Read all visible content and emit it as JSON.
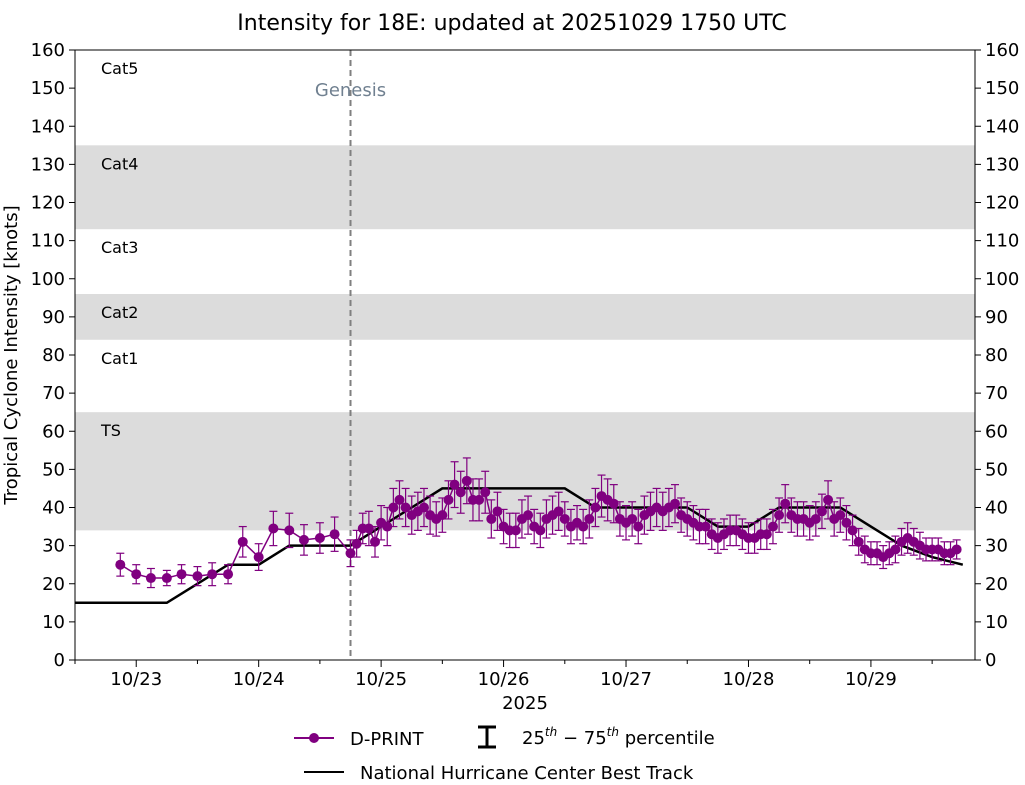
{
  "chart_data": {
    "type": "scatter",
    "title": "Intensity for 18E: updated at 20251029 1750 UTC",
    "ylabel": "Tropical Cyclone Intensity [knots]",
    "xlabel": "2025",
    "ylim": [
      0,
      160
    ],
    "yticks": [
      0,
      10,
      20,
      30,
      40,
      50,
      60,
      70,
      80,
      90,
      100,
      110,
      120,
      130,
      140,
      150,
      160
    ],
    "xlim_days": [
      22.5,
      29.85
    ],
    "xtick_labels": [
      {
        "day": 23,
        "label": "10/23"
      },
      {
        "day": 24,
        "label": "10/24"
      },
      {
        "day": 25,
        "label": "10/25"
      },
      {
        "day": 26,
        "label": "10/26"
      },
      {
        "day": 27,
        "label": "10/27"
      },
      {
        "day": 28,
        "label": "10/28"
      },
      {
        "day": 29,
        "label": "10/29"
      }
    ],
    "category_bands": [
      {
        "label": "TS",
        "ymin": 34,
        "ymax": 65,
        "shaded": true
      },
      {
        "label": "Cat1",
        "ymin": 65,
        "ymax": 84,
        "shaded": false
      },
      {
        "label": "Cat2",
        "ymin": 84,
        "ymax": 96,
        "shaded": true
      },
      {
        "label": "Cat3",
        "ymin": 96,
        "ymax": 113,
        "shaded": false
      },
      {
        "label": "Cat4",
        "ymin": 113,
        "ymax": 135,
        "shaded": true
      },
      {
        "label": "Cat5",
        "ymin": 135,
        "ymax": 160,
        "shaded": false
      }
    ],
    "genesis": {
      "label": "Genesis",
      "day": 24.75
    },
    "legend": {
      "dprint_label": "D-PRINT",
      "percentile_label": "25th - 75th percentile",
      "percentile_base": "25",
      "percentile_sup1": "th",
      "percentile_mid": " − 75",
      "percentile_sup2": "th",
      "percentile_tail": " percentile",
      "best_track_label": "National Hurricane Center Best Track",
      "placement": "bottom-center"
    },
    "colors": {
      "dprint": "#800080",
      "best_track": "#000000",
      "band": "#dcdcdc",
      "genesis": "#708090"
    },
    "best_track": {
      "x": [
        22.5,
        23.25,
        23.5,
        23.75,
        24.0,
        24.25,
        24.5,
        24.75,
        25.0,
        25.25,
        25.5,
        25.75,
        26.0,
        26.25,
        26.5,
        26.75,
        27.0,
        27.25,
        27.5,
        27.75,
        28.0,
        28.25,
        28.5,
        28.75,
        29.0,
        29.25,
        29.5,
        29.75
      ],
      "y": [
        15,
        15,
        20,
        25,
        25,
        30,
        30,
        30,
        35,
        40,
        45,
        45,
        45,
        45,
        45,
        40,
        40,
        40,
        40,
        35,
        35,
        40,
        40,
        40,
        35,
        30,
        27,
        25
      ]
    },
    "dprint": {
      "x": [
        22.87,
        23.0,
        23.12,
        23.25,
        23.37,
        23.5,
        23.62,
        23.75,
        23.87,
        24.0,
        24.12,
        24.25,
        24.37,
        24.5,
        24.62,
        24.75,
        24.8,
        24.85,
        24.9,
        24.95,
        25.0,
        25.05,
        25.1,
        25.15,
        25.2,
        25.25,
        25.3,
        25.35,
        25.4,
        25.45,
        25.5,
        25.55,
        25.6,
        25.65,
        25.7,
        25.75,
        25.8,
        25.85,
        25.9,
        25.95,
        26.0,
        26.05,
        26.1,
        26.15,
        26.2,
        26.25,
        26.3,
        26.35,
        26.4,
        26.45,
        26.5,
        26.55,
        26.6,
        26.65,
        26.7,
        26.75,
        26.8,
        26.85,
        26.9,
        26.95,
        27.0,
        27.05,
        27.1,
        27.15,
        27.2,
        27.25,
        27.3,
        27.35,
        27.4,
        27.45,
        27.5,
        27.55,
        27.6,
        27.65,
        27.7,
        27.75,
        27.8,
        27.85,
        27.9,
        27.95,
        28.0,
        28.05,
        28.1,
        28.15,
        28.2,
        28.25,
        28.3,
        28.35,
        28.4,
        28.45,
        28.5,
        28.55,
        28.6,
        28.65,
        28.7,
        28.75,
        28.8,
        28.85,
        28.9,
        28.95,
        29.0,
        29.05,
        29.1,
        29.15,
        29.2,
        29.25,
        29.3,
        29.35,
        29.4,
        29.45,
        29.5,
        29.55,
        29.6,
        29.65,
        29.7
      ],
      "y": [
        25,
        22.5,
        21.5,
        21.5,
        22.5,
        22,
        22.5,
        22.5,
        31,
        27,
        34.5,
        34,
        31.5,
        32,
        33,
        28,
        30.5,
        34.5,
        34.5,
        31,
        36,
        35,
        40,
        42,
        40,
        38,
        39,
        40,
        38,
        37,
        38,
        42,
        46,
        44,
        47,
        42,
        42,
        44,
        37,
        39,
        35,
        34,
        34,
        37,
        38,
        35,
        34,
        37,
        38,
        39,
        37,
        35,
        36,
        35,
        37,
        40,
        43,
        42,
        41,
        37,
        36,
        37,
        35,
        38,
        39,
        40,
        39,
        40,
        41,
        38,
        37,
        36,
        35,
        35,
        33,
        32,
        33,
        34,
        34,
        33,
        32,
        32,
        33,
        33,
        35,
        38,
        41,
        38,
        37,
        37,
        36,
        37,
        39,
        42,
        37,
        38,
        36,
        34,
        31,
        29,
        28,
        28,
        27,
        28,
        29,
        31,
        32,
        31,
        30,
        29,
        29,
        29,
        28,
        28,
        29
      ],
      "err": [
        3,
        2.5,
        2.5,
        2,
        2.5,
        2.5,
        3,
        2.5,
        4,
        3.5,
        4.5,
        4.5,
        4,
        4,
        4.5,
        3.5,
        3.5,
        4,
        4.5,
        4,
        4.5,
        5,
        5,
        5,
        5,
        5,
        5,
        5,
        5,
        4.5,
        4.5,
        5,
        6,
        5.5,
        6,
        5.5,
        5.5,
        5.5,
        5,
        5,
        4.5,
        4.5,
        4.5,
        5,
        5,
        4.5,
        4.5,
        5,
        5,
        5,
        4.5,
        4.5,
        4.5,
        4.5,
        5,
        5,
        5.5,
        5.5,
        5,
        4.5,
        4.5,
        4.5,
        4.5,
        5,
        5,
        5,
        5,
        5,
        5,
        4.5,
        4.5,
        4.5,
        4.5,
        4.5,
        4,
        4,
        4,
        4,
        4,
        4,
        4,
        4,
        4,
        4,
        4.5,
        4.5,
        5,
        4.5,
        4.5,
        4.5,
        4.5,
        4.5,
        4.5,
        5,
        4.5,
        4.5,
        4.5,
        4,
        3.5,
        3.5,
        3,
        3,
        3,
        3,
        3.5,
        3.5,
        4,
        3.5,
        3.5,
        3,
        3,
        3,
        3,
        3,
        2.5
      ]
    }
  }
}
